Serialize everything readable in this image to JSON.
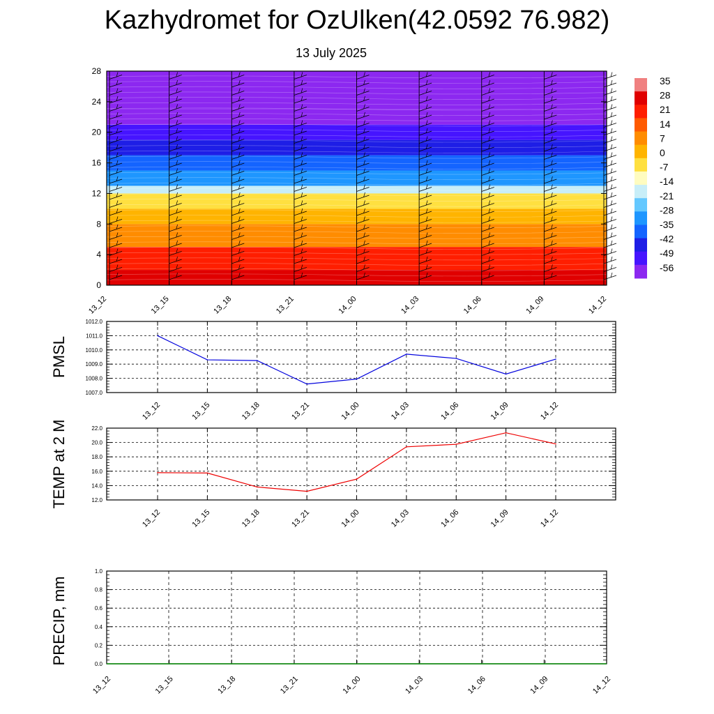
{
  "header": {
    "title": "Kazhydromet for OzUlken(42.0592 76.982)",
    "subtitle": "13 July 2025"
  },
  "colorbar": {
    "labels": [
      "35",
      "28",
      "21",
      "14",
      "7",
      "0",
      "-7",
      "-14",
      "-21",
      "-28",
      "-35",
      "-42",
      "-49",
      "-56"
    ],
    "colors": [
      "#f08080",
      "#e00000",
      "#ff1e00",
      "#ff5a00",
      "#ff8c00",
      "#ffb400",
      "#ffe040",
      "#fffcc0",
      "#c8eef8",
      "#64c8ff",
      "#1e96ff",
      "#1464ff",
      "#1e1ee6",
      "#4614ff",
      "#8c28f0"
    ]
  },
  "chart_data": [
    {
      "type": "heatmap",
      "name": "vertical-profile",
      "x_ticks": [
        "13_12",
        "13_15",
        "13_18",
        "13_21",
        "14_00",
        "14_03",
        "14_06",
        "14_09",
        "14_12"
      ],
      "y_ticks": [
        "0",
        "4",
        "8",
        "12",
        "16",
        "20",
        "24",
        "28"
      ],
      "ylim": [
        0,
        28
      ],
      "values_description_bands": [
        {
          "y_from": 0,
          "y_to": 2,
          "value": 30
        },
        {
          "y_from": 2,
          "y_to": 5,
          "value": 22
        },
        {
          "y_from": 5,
          "y_to": 8,
          "value": 14
        },
        {
          "y_from": 8,
          "y_to": 10,
          "value": 7
        },
        {
          "y_from": 10,
          "y_to": 12,
          "value": 0
        },
        {
          "y_from": 12,
          "y_to": 13,
          "value": -14
        },
        {
          "y_from": 13,
          "y_to": 15,
          "value": -28
        },
        {
          "y_from": 15,
          "y_to": 17,
          "value": -38
        },
        {
          "y_from": 17,
          "y_to": 19,
          "value": -45
        },
        {
          "y_from": 19,
          "y_to": 21,
          "value": -52
        },
        {
          "y_from": 21,
          "y_to": 23,
          "value": -56
        },
        {
          "y_from": 23,
          "y_to": 28,
          "value": -60
        }
      ],
      "grid": false
    },
    {
      "type": "line",
      "name": "pmsl",
      "ylabel": "PMSL",
      "categories": [
        "13_12",
        "13_15",
        "13_18",
        "13_21",
        "14_00",
        "14_03",
        "14_06",
        "14_09",
        "14_12"
      ],
      "values": [
        1011.0,
        1009.3,
        1009.25,
        1007.6,
        1007.95,
        1009.7,
        1009.4,
        1008.3,
        1009.35
      ],
      "y_ticks": [
        "1007.0",
        "1008.0",
        "1009.0",
        "1010.0",
        "1011.0",
        "1012.0"
      ],
      "ylim": [
        1007.0,
        1012.0
      ],
      "color": "#0000dd",
      "grid": true
    },
    {
      "type": "line",
      "name": "temp2m",
      "ylabel": "TEMP at 2 M",
      "categories": [
        "13_12",
        "13_15",
        "13_18",
        "13_21",
        "14_00",
        "14_03",
        "14_06",
        "14_09",
        "14_12"
      ],
      "values": [
        15.8,
        15.75,
        13.8,
        13.2,
        14.9,
        19.4,
        19.75,
        21.35,
        19.8
      ],
      "y_ticks": [
        "12.0",
        "14.0",
        "16.0",
        "18.0",
        "20.0",
        "22.0"
      ],
      "ylim": [
        12.0,
        22.0
      ],
      "color": "#ee0000",
      "grid": true
    },
    {
      "type": "line",
      "name": "precip",
      "ylabel": "PRECIP, mm",
      "categories": [
        "13_12",
        "13_15",
        "13_18",
        "13_21",
        "14_00",
        "14_03",
        "14_06",
        "14_09",
        "14_12"
      ],
      "values": [
        0,
        0,
        0,
        0,
        0,
        0,
        0,
        0,
        0
      ],
      "y_ticks": [
        "0.0",
        "0.2",
        "0.4",
        "0.6",
        "0.8",
        "1.0"
      ],
      "ylim": [
        0.0,
        1.0
      ],
      "color": "#008800",
      "grid": true
    }
  ]
}
